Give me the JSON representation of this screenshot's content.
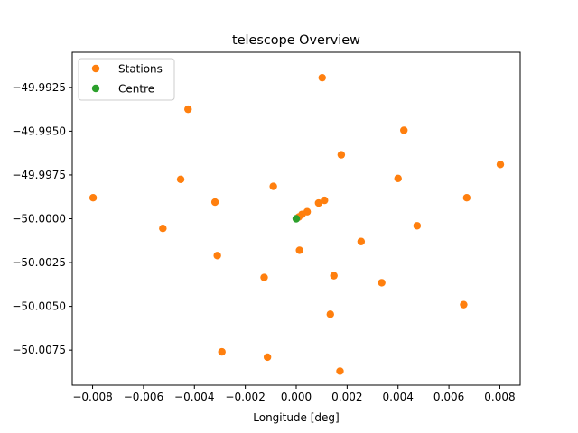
{
  "chart_data": {
    "type": "scatter",
    "title": "telescope Overview",
    "xlabel": "Longitude [deg]",
    "ylabel": "",
    "xlim": [
      -0.0088,
      0.0088
    ],
    "ylim": [
      -50.0095,
      -49.9905
    ],
    "xticks": [
      -0.008,
      -0.006,
      -0.004,
      -0.002,
      0.0,
      0.002,
      0.004,
      0.006,
      0.008
    ],
    "xtick_labels": [
      "−0.008",
      "−0.006",
      "−0.004",
      "−0.002",
      "0.000",
      "0.002",
      "0.004",
      "0.006",
      "0.008"
    ],
    "yticks": [
      -49.9925,
      -49.995,
      -49.9975,
      -50.0,
      -50.0025,
      -50.005,
      -50.0075
    ],
    "ytick_labels": [
      "−49.9925",
      "−49.9950",
      "−49.9975",
      "−50.0000",
      "−50.0025",
      "−50.0050",
      "−50.0075"
    ],
    "grid": false,
    "legend_position": "upper-left",
    "series": [
      {
        "name": "Stations",
        "color": "#ff7f0e",
        "points": [
          [
            0.00102,
            -49.99195
          ],
          [
            -0.00425,
            -49.99375
          ],
          [
            0.00423,
            -49.99495
          ],
          [
            0.00177,
            -49.99635
          ],
          [
            0.00802,
            -49.9969
          ],
          [
            -0.00454,
            -49.99775
          ],
          [
            0.004,
            -49.9977
          ],
          [
            -0.0009,
            -49.99815
          ],
          [
            -0.00798,
            -49.9988
          ],
          [
            0.0067,
            -49.9988
          ],
          [
            -0.00319,
            -49.99905
          ],
          [
            0.00111,
            -49.99895
          ],
          [
            0.00088,
            -49.9991
          ],
          [
            0.00043,
            -49.9996
          ],
          [
            0.00023,
            -49.99975
          ],
          [
            0.0001,
            -49.9999
          ],
          [
            -0.00524,
            -50.00055
          ],
          [
            0.00475,
            -50.0004
          ],
          [
            0.00255,
            -50.0013
          ],
          [
            0.00013,
            -50.0018
          ],
          [
            -0.0031,
            -50.0021
          ],
          [
            -0.00126,
            -50.00335
          ],
          [
            0.00148,
            -50.00325
          ],
          [
            0.00336,
            -50.00365
          ],
          [
            0.00658,
            -50.0049
          ],
          [
            0.00134,
            -50.00545
          ],
          [
            -0.00292,
            -50.0076
          ],
          [
            -0.00113,
            -50.0079
          ],
          [
            0.00172,
            -50.0087
          ]
        ]
      },
      {
        "name": "Centre",
        "color": "#2ca02c",
        "points": [
          [
            0.0,
            -50.0
          ]
        ]
      }
    ]
  }
}
